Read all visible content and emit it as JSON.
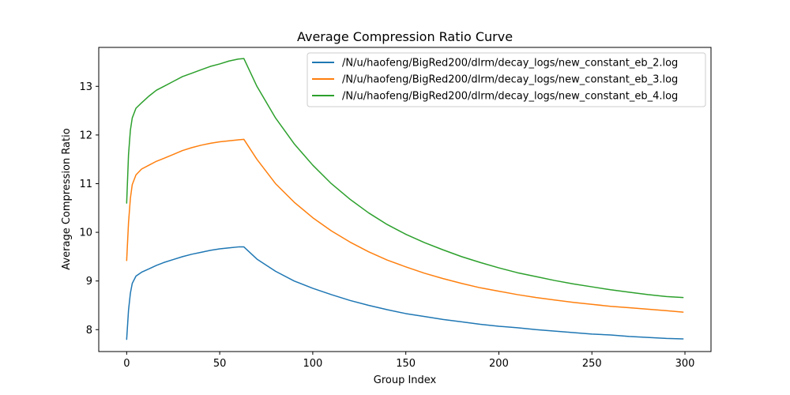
{
  "chart_data": {
    "type": "line",
    "title": "Average Compression Ratio Curve",
    "xlabel": "Group Index",
    "ylabel": "Average Compression Ratio",
    "xlim": [
      -15,
      314
    ],
    "ylim": [
      7.55,
      13.8
    ],
    "xticks": [
      0,
      50,
      100,
      150,
      200,
      250,
      300
    ],
    "yticks": [
      8,
      9,
      10,
      11,
      12,
      13
    ],
    "grid": false,
    "legend_position": "top-right",
    "series": [
      {
        "name": "/N/u/haofeng/BigRed200/dlrm/decay_logs/new_constant_eb_2.log",
        "color": "#1f77b4",
        "points": [
          [
            0,
            7.8
          ],
          [
            1,
            8.4
          ],
          [
            2,
            8.75
          ],
          [
            3,
            8.95
          ],
          [
            5,
            9.1
          ],
          [
            8,
            9.18
          ],
          [
            12,
            9.25
          ],
          [
            16,
            9.32
          ],
          [
            20,
            9.38
          ],
          [
            25,
            9.44
          ],
          [
            30,
            9.5
          ],
          [
            35,
            9.55
          ],
          [
            40,
            9.59
          ],
          [
            45,
            9.63
          ],
          [
            50,
            9.66
          ],
          [
            55,
            9.68
          ],
          [
            60,
            9.7
          ],
          [
            63,
            9.7
          ],
          [
            70,
            9.45
          ],
          [
            80,
            9.2
          ],
          [
            90,
            9.0
          ],
          [
            100,
            8.85
          ],
          [
            110,
            8.72
          ],
          [
            120,
            8.6
          ],
          [
            130,
            8.5
          ],
          [
            140,
            8.41
          ],
          [
            150,
            8.33
          ],
          [
            160,
            8.27
          ],
          [
            170,
            8.21
          ],
          [
            180,
            8.16
          ],
          [
            190,
            8.11
          ],
          [
            200,
            8.07
          ],
          [
            210,
            8.04
          ],
          [
            220,
            8.0
          ],
          [
            230,
            7.97
          ],
          [
            240,
            7.94
          ],
          [
            250,
            7.91
          ],
          [
            260,
            7.89
          ],
          [
            270,
            7.86
          ],
          [
            280,
            7.84
          ],
          [
            290,
            7.82
          ],
          [
            299,
            7.81
          ]
        ]
      },
      {
        "name": "/N/u/haofeng/BigRed200/dlrm/decay_logs/new_constant_eb_3.log",
        "color": "#ff7f0e",
        "points": [
          [
            0,
            9.42
          ],
          [
            1,
            10.2
          ],
          [
            2,
            10.7
          ],
          [
            3,
            10.98
          ],
          [
            5,
            11.18
          ],
          [
            8,
            11.3
          ],
          [
            12,
            11.38
          ],
          [
            16,
            11.46
          ],
          [
            20,
            11.52
          ],
          [
            25,
            11.6
          ],
          [
            30,
            11.68
          ],
          [
            35,
            11.74
          ],
          [
            40,
            11.79
          ],
          [
            45,
            11.83
          ],
          [
            50,
            11.86
          ],
          [
            55,
            11.88
          ],
          [
            60,
            11.9
          ],
          [
            63,
            11.91
          ],
          [
            70,
            11.5
          ],
          [
            80,
            11.0
          ],
          [
            90,
            10.62
          ],
          [
            100,
            10.3
          ],
          [
            110,
            10.03
          ],
          [
            120,
            9.8
          ],
          [
            130,
            9.6
          ],
          [
            140,
            9.43
          ],
          [
            150,
            9.29
          ],
          [
            160,
            9.16
          ],
          [
            170,
            9.05
          ],
          [
            180,
            8.95
          ],
          [
            190,
            8.86
          ],
          [
            200,
            8.79
          ],
          [
            210,
            8.72
          ],
          [
            220,
            8.66
          ],
          [
            230,
            8.61
          ],
          [
            240,
            8.56
          ],
          [
            250,
            8.52
          ],
          [
            260,
            8.48
          ],
          [
            270,
            8.45
          ],
          [
            280,
            8.42
          ],
          [
            290,
            8.39
          ],
          [
            299,
            8.36
          ]
        ]
      },
      {
        "name": "/N/u/haofeng/BigRed200/dlrm/decay_logs/new_constant_eb_4.log",
        "color": "#2ca02c",
        "points": [
          [
            0,
            10.6
          ],
          [
            1,
            11.6
          ],
          [
            2,
            12.1
          ],
          [
            3,
            12.35
          ],
          [
            5,
            12.55
          ],
          [
            8,
            12.66
          ],
          [
            12,
            12.8
          ],
          [
            16,
            12.92
          ],
          [
            20,
            13.0
          ],
          [
            25,
            13.1
          ],
          [
            30,
            13.2
          ],
          [
            35,
            13.27
          ],
          [
            40,
            13.34
          ],
          [
            45,
            13.41
          ],
          [
            50,
            13.46
          ],
          [
            55,
            13.52
          ],
          [
            60,
            13.56
          ],
          [
            63,
            13.57
          ],
          [
            70,
            13.0
          ],
          [
            80,
            12.35
          ],
          [
            90,
            11.82
          ],
          [
            100,
            11.38
          ],
          [
            110,
            11.0
          ],
          [
            120,
            10.68
          ],
          [
            130,
            10.4
          ],
          [
            140,
            10.16
          ],
          [
            150,
            9.96
          ],
          [
            160,
            9.79
          ],
          [
            170,
            9.64
          ],
          [
            180,
            9.5
          ],
          [
            190,
            9.38
          ],
          [
            200,
            9.27
          ],
          [
            210,
            9.17
          ],
          [
            220,
            9.09
          ],
          [
            230,
            9.01
          ],
          [
            240,
            8.94
          ],
          [
            250,
            8.88
          ],
          [
            260,
            8.82
          ],
          [
            270,
            8.77
          ],
          [
            280,
            8.72
          ],
          [
            290,
            8.68
          ],
          [
            299,
            8.66
          ]
        ]
      }
    ]
  }
}
